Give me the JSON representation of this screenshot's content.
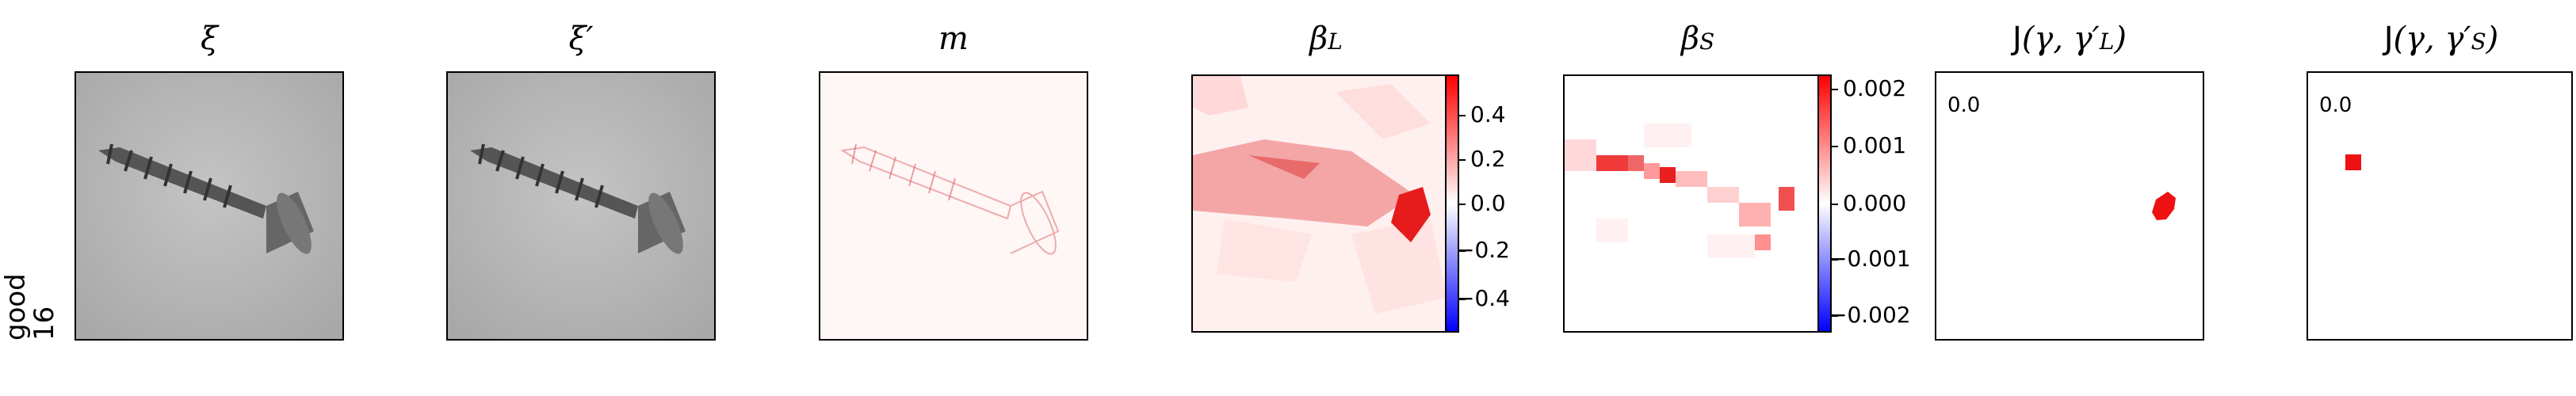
{
  "row_label": {
    "line1": "good",
    "line2": "16"
  },
  "panels": [
    {
      "title": "ξ"
    },
    {
      "title": "ξ′"
    },
    {
      "title": "m"
    },
    {
      "title": "β",
      "sub": "L"
    },
    {
      "title": "β",
      "sub": "S"
    },
    {
      "title_prefix": "J",
      "title_args": "(γ, γ′",
      "sub": "L",
      "title_close": ")"
    },
    {
      "title_prefix": "J",
      "title_args": "(γ, γ′",
      "sub": "S",
      "title_close": ")"
    }
  ],
  "colorbar_L": {
    "ticks": [
      "0.4",
      "0.2",
      "0.0",
      "−0.2",
      "−0.4"
    ],
    "range": [
      -0.55,
      0.55
    ]
  },
  "colorbar_S": {
    "ticks": [
      "0.002",
      "0.001",
      "0.000",
      "−0.001",
      "−0.002"
    ],
    "range": [
      -0.0023,
      0.0023
    ]
  },
  "jaccard_L": {
    "value": "0.0"
  },
  "jaccard_S": {
    "value": "0.0"
  },
  "colors": {
    "positive": "#ff0000",
    "negative": "#0000ff",
    "neutral": "#ffffff",
    "image_bg": "#b8b8b8"
  }
}
